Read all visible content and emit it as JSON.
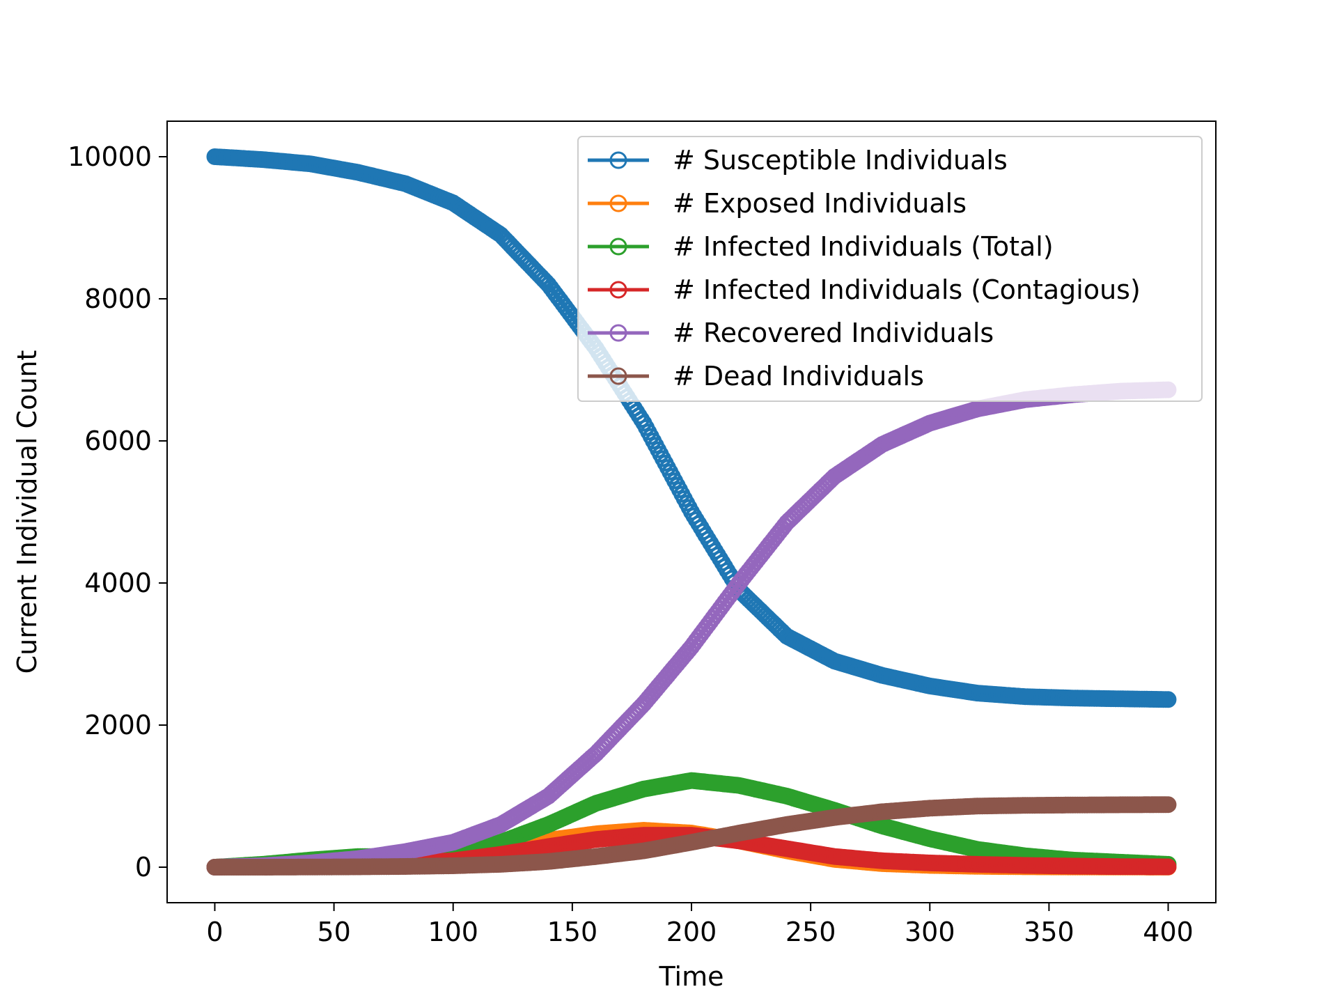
{
  "chart_data": {
    "type": "scatter",
    "xlabel": "Time",
    "ylabel": "Current Individual Count",
    "xlim": [
      -20,
      420
    ],
    "ylim": [
      -500,
      10500
    ],
    "xticks": [
      0,
      50,
      100,
      150,
      200,
      250,
      300,
      350,
      400
    ],
    "xtick_labels": [
      "0",
      "50",
      "100",
      "150",
      "200",
      "250",
      "300",
      "350",
      "400"
    ],
    "yticks": [
      0,
      2000,
      4000,
      6000,
      8000,
      10000
    ],
    "ytick_labels": [
      "0",
      "2000",
      "4000",
      "6000",
      "8000",
      "10000"
    ],
    "grid": false,
    "legend_position": "top-right",
    "marker": "open circle",
    "series": [
      {
        "name": "# Susceptible Individuals",
        "color": "#1f77b4",
        "x": [
          0,
          20,
          40,
          60,
          80,
          100,
          120,
          140,
          160,
          180,
          200,
          220,
          240,
          260,
          280,
          300,
          320,
          340,
          360,
          380,
          400
        ],
        "y": [
          10000,
          9960,
          9900,
          9780,
          9620,
          9350,
          8900,
          8200,
          7300,
          6250,
          5000,
          3900,
          3250,
          2900,
          2700,
          2550,
          2450,
          2400,
          2380,
          2370,
          2360
        ]
      },
      {
        "name": "# Exposed Individuals",
        "color": "#ff7f0e",
        "x": [
          0,
          20,
          40,
          60,
          80,
          100,
          120,
          140,
          160,
          180,
          200,
          220,
          240,
          260,
          280,
          300,
          320,
          340,
          360,
          380,
          400
        ],
        "y": [
          0,
          20,
          40,
          60,
          80,
          120,
          250,
          380,
          470,
          520,
          480,
          370,
          230,
          110,
          50,
          25,
          12,
          6,
          3,
          2,
          1
        ]
      },
      {
        "name": "# Infected Individuals (Total)",
        "color": "#2ca02c",
        "x": [
          0,
          20,
          40,
          60,
          80,
          100,
          120,
          140,
          160,
          180,
          200,
          220,
          240,
          260,
          280,
          300,
          320,
          340,
          360,
          380,
          400
        ],
        "y": [
          0,
          40,
          100,
          150,
          150,
          200,
          350,
          600,
          900,
          1100,
          1220,
          1150,
          1000,
          800,
          580,
          400,
          250,
          160,
          100,
          70,
          40
        ]
      },
      {
        "name": "# Infected Individuals (Contagious)",
        "color": "#d62728",
        "x": [
          0,
          20,
          40,
          60,
          80,
          100,
          120,
          140,
          160,
          180,
          200,
          220,
          240,
          260,
          280,
          300,
          320,
          340,
          360,
          380,
          400
        ],
        "y": [
          0,
          15,
          30,
          50,
          60,
          90,
          180,
          290,
          390,
          450,
          450,
          370,
          260,
          150,
          90,
          60,
          40,
          25,
          15,
          8,
          5
        ]
      },
      {
        "name": "# Recovered Individuals",
        "color": "#9467bd",
        "x": [
          0,
          20,
          40,
          60,
          80,
          100,
          120,
          140,
          160,
          180,
          200,
          220,
          240,
          260,
          280,
          300,
          320,
          340,
          360,
          380,
          400
        ],
        "y": [
          0,
          20,
          60,
          120,
          220,
          350,
          600,
          1000,
          1600,
          2300,
          3100,
          4000,
          4850,
          5500,
          5950,
          6250,
          6450,
          6580,
          6650,
          6700,
          6720
        ]
      },
      {
        "name": "# Dead Individuals",
        "color": "#8c564b",
        "x": [
          0,
          20,
          40,
          60,
          80,
          100,
          120,
          140,
          160,
          180,
          200,
          220,
          240,
          260,
          280,
          300,
          320,
          340,
          360,
          380,
          400
        ],
        "y": [
          0,
          0,
          2,
          5,
          10,
          20,
          40,
          80,
          150,
          230,
          350,
          480,
          600,
          700,
          780,
          830,
          860,
          870,
          875,
          878,
          880
        ]
      }
    ]
  }
}
